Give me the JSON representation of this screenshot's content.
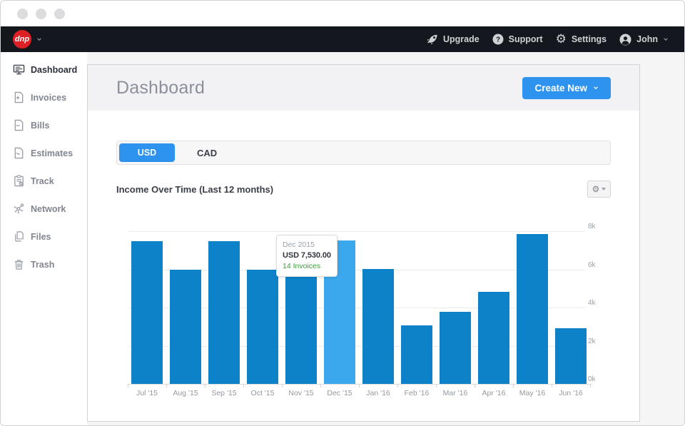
{
  "nav": {
    "logo_text": "dnp",
    "items": [
      {
        "label": "Upgrade",
        "icon": "rocket"
      },
      {
        "label": "Support",
        "icon": "question-circle"
      },
      {
        "label": "Settings",
        "icon": "gear"
      },
      {
        "label": "John",
        "icon": "user-circle"
      }
    ]
  },
  "sidebar": {
    "items": [
      {
        "label": "Dashboard",
        "icon": "monitor",
        "active": true
      },
      {
        "label": "Invoices",
        "icon": "document-plus",
        "active": false
      },
      {
        "label": "Bills",
        "icon": "document-minus",
        "active": false
      },
      {
        "label": "Estimates",
        "icon": "document-tilde",
        "active": false
      },
      {
        "label": "Track",
        "icon": "clipboard-check",
        "active": false
      },
      {
        "label": "Network",
        "icon": "network-nodes",
        "active": false
      },
      {
        "label": "Files",
        "icon": "stacked-pages",
        "active": false
      },
      {
        "label": "Trash",
        "icon": "trash-can",
        "active": false
      }
    ]
  },
  "header": {
    "title": "Dashboard",
    "create_button": "Create New"
  },
  "currency_tabs": {
    "tabs": [
      "USD",
      "CAD"
    ],
    "active": "USD"
  },
  "chart_data": {
    "type": "bar",
    "title": "Income Over Time (Last 12 months)",
    "categories": [
      "Jul '15",
      "Aug '15",
      "Sep '15",
      "Oct '15",
      "Nov '15",
      "Dec '15",
      "Jan '16",
      "Feb '16",
      "Mar '16",
      "Apr '16",
      "May '16",
      "Jun '16"
    ],
    "values": [
      7480,
      5980,
      7480,
      5980,
      5760,
      7530,
      6020,
      3070,
      3780,
      4820,
      7860,
      2930
    ],
    "ylabel": "",
    "xlabel": "",
    "ylim": [
      0,
      8000
    ],
    "yticks": [
      "0k",
      "2k",
      "4k",
      "6k",
      "8k"
    ],
    "grid": true,
    "legend": false,
    "highlight_index": 5,
    "bar_color": "#0d82c9",
    "highlight_color": "#3ba7ec",
    "tooltip": {
      "date": "Dec 2015",
      "amount": "USD 7,530.00",
      "invoices": "14 Invoices"
    }
  }
}
